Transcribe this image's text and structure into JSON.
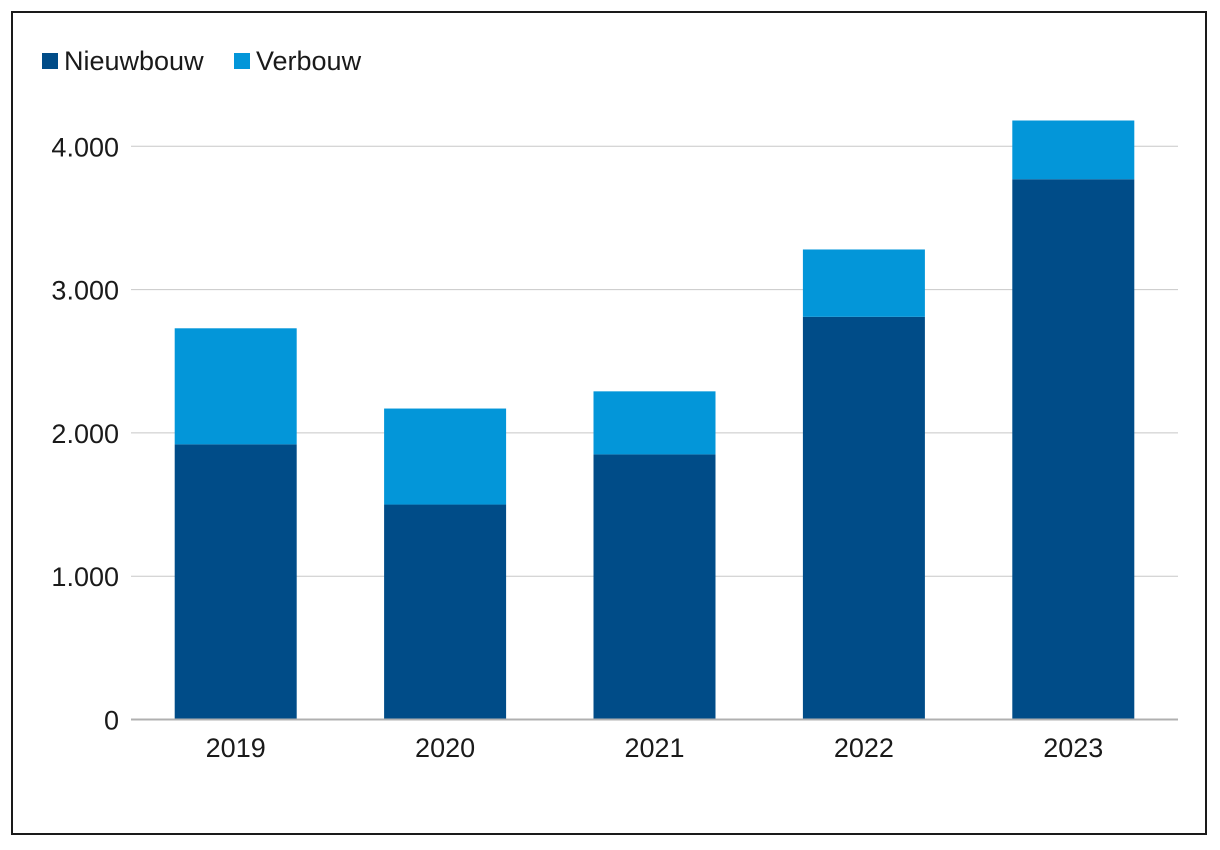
{
  "chart_data": {
    "type": "bar",
    "stacked": true,
    "title": "",
    "xlabel": "",
    "ylabel": "",
    "categories": [
      "2019",
      "2020",
      "2021",
      "2022",
      "2023"
    ],
    "series": [
      {
        "name": "Nieuwbouw",
        "color": "#004c88",
        "values": [
          1920,
          1500,
          1850,
          2810,
          3770
        ]
      },
      {
        "name": "Verbouw",
        "color": "#0396d9",
        "values": [
          810,
          670,
          440,
          470,
          410
        ]
      }
    ],
    "ylim": [
      0,
      4200
    ],
    "yticks": [
      0,
      1000,
      2000,
      3000,
      4000
    ],
    "ytick_labels": [
      "0",
      "1.000",
      "2.000",
      "3.000",
      "4.000"
    ],
    "grid": true,
    "legend_position": "top-left"
  }
}
